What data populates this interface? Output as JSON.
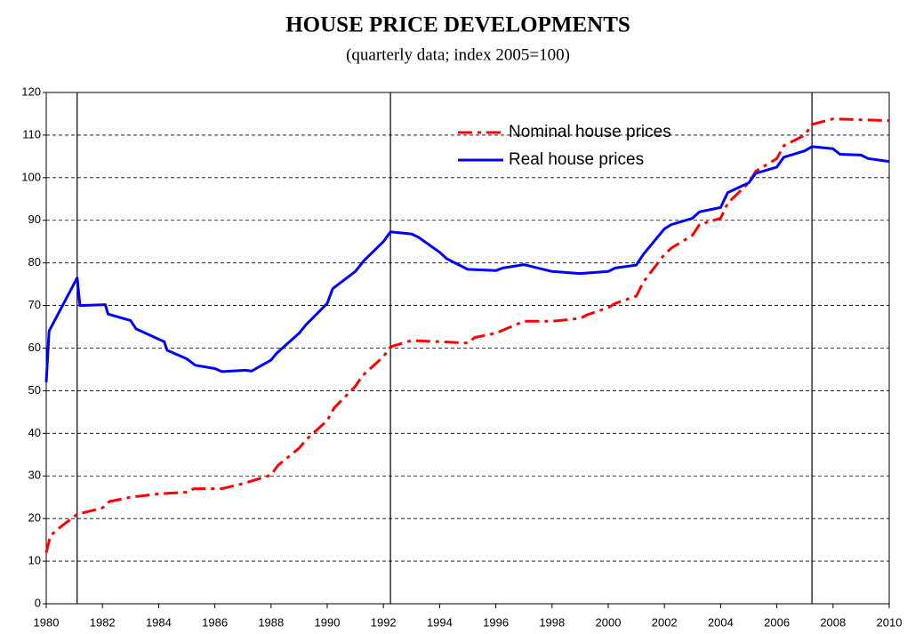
{
  "chart_data": {
    "type": "line",
    "title": "HOUSE PRICE DEVELOPMENTS",
    "subtitle": "(quarterly data; index 2005=100)",
    "xlim": [
      1980,
      2010
    ],
    "xticks": [
      1980,
      1982,
      1984,
      1986,
      1988,
      1990,
      1992,
      1994,
      1996,
      1998,
      2000,
      2002,
      2004,
      2006,
      2008,
      2010
    ],
    "ylim": [
      0,
      120
    ],
    "yticks": [
      0,
      10,
      20,
      30,
      40,
      50,
      60,
      70,
      80,
      90,
      100,
      110,
      120
    ],
    "grid": true,
    "vlines": [
      1981.1,
      1992.25,
      2007.25
    ],
    "series": [
      {
        "name": "Nominal house prices",
        "color": "#ff0000",
        "dashed": true,
        "x": [
          1980,
          1980.15,
          1980.5,
          1981.1,
          1982,
          1982.25,
          1983,
          1984,
          1985,
          1985.25,
          1986.25,
          1987,
          1988,
          1988.25,
          1989,
          1989.25,
          1990,
          1990.25,
          1991,
          1991.25,
          1992,
          1992.25,
          1993,
          1994,
          1995,
          1995.25,
          1996,
          1997,
          1998,
          1999,
          1999.25,
          2000,
          2000.25,
          2001,
          2001.25,
          2002,
          2002.25,
          2003,
          2003.25,
          2004,
          2004.25,
          2005,
          2005.25,
          2006,
          2006.25,
          2007,
          2007.25,
          2008,
          2009,
          2010
        ],
        "values": [
          12,
          16,
          18,
          21,
          22.5,
          24,
          25,
          25.8,
          26.2,
          27,
          27,
          28.2,
          30.2,
          32.5,
          36.5,
          38.5,
          43,
          46,
          51,
          53.5,
          58,
          60.3,
          61.8,
          61.5,
          61.2,
          62.5,
          63.5,
          66.3,
          66.3,
          67,
          67.8,
          69.5,
          70.5,
          72.2,
          75.5,
          82,
          83.5,
          86.5,
          89,
          90.5,
          94,
          98.8,
          101.5,
          104.5,
          107.5,
          110,
          112.5,
          113.8,
          113.6,
          113.4
        ]
      },
      {
        "name": "Real house prices",
        "color": "#0000ff",
        "dashed": false,
        "x": [
          1980,
          1980.1,
          1981.1,
          1981.2,
          1982.1,
          1982.2,
          1983,
          1983.2,
          1984.2,
          1984.3,
          1985,
          1985.3,
          1986,
          1986.25,
          1987.1,
          1987.3,
          1988,
          1988.2,
          1989,
          1989.25,
          1990,
          1990.2,
          1991,
          1991.3,
          1992,
          1992.25,
          1993,
          1993.25,
          1994,
          1994.25,
          1995,
          1996,
          1996.25,
          1997,
          1998,
          1999,
          2000,
          2000.25,
          2001,
          2001.25,
          2002,
          2002.25,
          2003,
          2003.25,
          2004,
          2004.25,
          2005,
          2005.25,
          2006,
          2006.25,
          2007,
          2007.25,
          2008,
          2008.25,
          2009,
          2009.25,
          2010
        ],
        "values": [
          52,
          64,
          76.5,
          70,
          70.2,
          68,
          66.5,
          64.5,
          61.5,
          59.5,
          57.5,
          56,
          55.2,
          54.5,
          54.8,
          54.6,
          57.2,
          58.8,
          63.5,
          65.5,
          70.5,
          74,
          78,
          80.5,
          85,
          87.3,
          86.8,
          86,
          82.5,
          81,
          78.5,
          78.2,
          78.8,
          79.6,
          78,
          77.5,
          78,
          78.8,
          79.5,
          82,
          88,
          89,
          90.5,
          92,
          93,
          96.5,
          98.8,
          101,
          102.5,
          104.8,
          106.3,
          107.3,
          106.8,
          105.5,
          105.3,
          104.5,
          103.8
        ]
      }
    ]
  }
}
